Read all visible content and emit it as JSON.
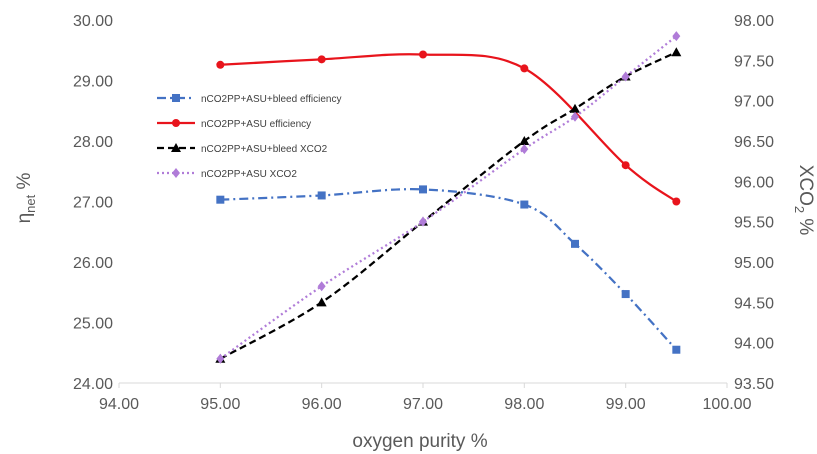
{
  "chart_data": {
    "type": "line",
    "xlabel": "oxygen purity %",
    "ylabel_left_main": "η",
    "ylabel_left_sub": "net",
    "ylabel_left_suffix": " %",
    "ylabel_right_main": "XCO",
    "ylabel_right_sub": "2",
    "ylabel_right_suffix": " %",
    "xlim": [
      94.0,
      100.0
    ],
    "xticks": [
      "94.00",
      "95.00",
      "96.00",
      "97.00",
      "98.00",
      "99.00",
      "100.00"
    ],
    "ylim_left": [
      24.0,
      30.0
    ],
    "yticks_left": [
      "24.00",
      "25.00",
      "26.00",
      "27.00",
      "28.00",
      "29.00",
      "30.00"
    ],
    "ylim_right": [
      93.5,
      98.0
    ],
    "yticks_right": [
      "93.50",
      "94.00",
      "94.50",
      "95.00",
      "95.50",
      "96.00",
      "96.50",
      "97.00",
      "97.50",
      "98.00"
    ],
    "legend_position": "upper-left inside plot",
    "series": [
      {
        "name": "nCO2PP+ASU+bleed efficiency",
        "axis": "left",
        "color": "#4472C4",
        "dash": "dashdot",
        "marker": "square",
        "x": [
          95.0,
          96.0,
          97.0,
          98.0,
          98.5,
          99.0,
          99.5
        ],
        "y": [
          27.03,
          27.1,
          27.2,
          26.95,
          26.3,
          25.47,
          24.55
        ]
      },
      {
        "name": "nCO2PP+ASU efficiency",
        "axis": "left",
        "color": "#E8141C",
        "dash": "solid",
        "marker": "circle",
        "x": [
          95.0,
          96.0,
          97.0,
          98.0,
          99.0,
          99.5
        ],
        "y": [
          29.26,
          29.35,
          29.43,
          29.2,
          27.6,
          27.0
        ]
      },
      {
        "name": "nCO2PP+ASU+bleed XCO2",
        "axis": "right",
        "color": "#000000",
        "dash": "dashed",
        "marker": "triangle",
        "x": [
          95.0,
          96.0,
          97.0,
          98.0,
          98.5,
          99.0,
          99.5
        ],
        "y": [
          93.8,
          94.5,
          95.5,
          96.5,
          96.9,
          97.3,
          97.6
        ]
      },
      {
        "name": "nCO2PP+ASU XCO2",
        "axis": "right",
        "color": "#B07CD8",
        "dash": "dotted",
        "marker": "diamond",
        "x": [
          95.0,
          96.0,
          97.0,
          98.0,
          98.5,
          99.0,
          99.5
        ],
        "y": [
          93.8,
          94.7,
          95.5,
          96.4,
          96.8,
          97.3,
          97.8
        ]
      }
    ]
  }
}
